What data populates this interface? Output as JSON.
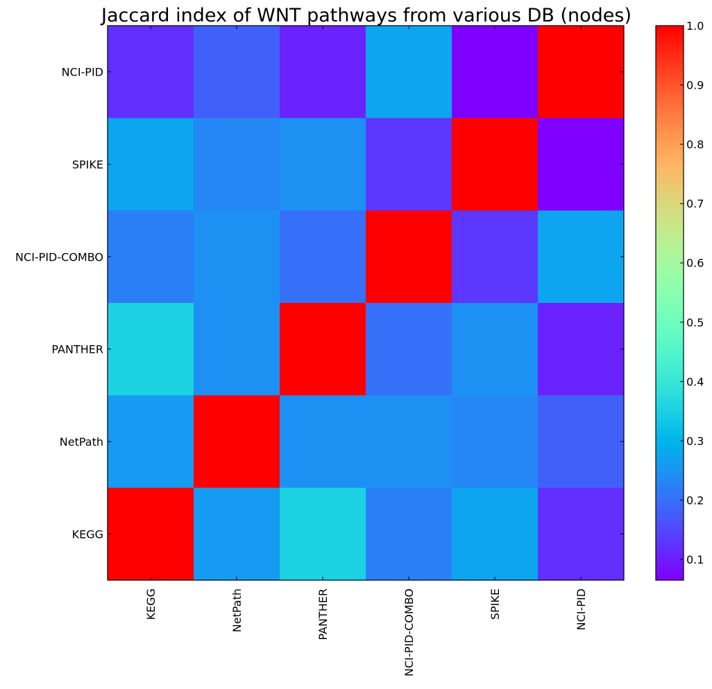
{
  "chart_data": {
    "type": "heatmap",
    "title": "Jaccard index of WNT pathways from various DB (nodes)",
    "colormap": "rainbow",
    "xlabel": "",
    "ylabel": "",
    "x_categories": [
      "KEGG",
      "NetPath",
      "PANTHER",
      "NCI-PID-COMBO",
      "SPIKE",
      "NCI-PID"
    ],
    "y_categories_top_to_bottom": [
      "NCI-PID",
      "SPIKE",
      "NCI-PID-COMBO",
      "PANTHER",
      "NetPath",
      "KEGG"
    ],
    "values_top_to_bottom": [
      [
        0.12,
        0.18,
        0.105,
        0.275,
        0.065,
        1.0
      ],
      [
        0.275,
        0.23,
        0.245,
        0.13,
        1.0,
        0.065
      ],
      [
        0.22,
        0.245,
        0.2,
        1.0,
        0.13,
        0.275
      ],
      [
        0.35,
        0.245,
        1.0,
        0.2,
        0.245,
        0.105
      ],
      [
        0.26,
        1.0,
        0.245,
        0.245,
        0.23,
        0.18
      ],
      [
        1.0,
        0.26,
        0.35,
        0.22,
        0.275,
        0.12
      ]
    ],
    "colorbar": {
      "range": [
        0.065,
        1.0
      ],
      "ticks": [
        0.1,
        0.2,
        0.3,
        0.4,
        0.5,
        0.6,
        0.7,
        0.8,
        0.9,
        1.0
      ],
      "tick_labels": [
        "0.1",
        "0.2",
        "0.3",
        "0.4",
        "0.5",
        "0.6",
        "0.7",
        "0.8",
        "0.9",
        "1.0"
      ]
    },
    "grid": false
  }
}
